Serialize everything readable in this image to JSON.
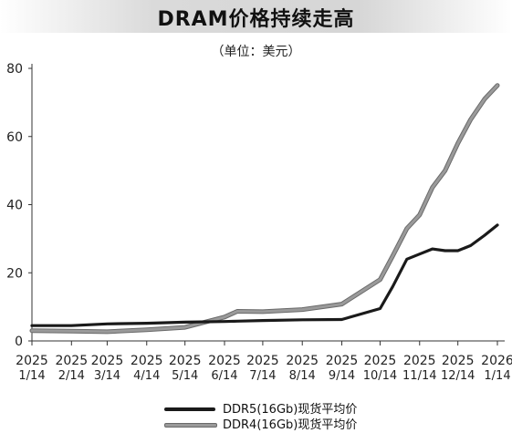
{
  "title": "DRAM价格持续走高",
  "unit": "（单位：美元）",
  "chart_data": {
    "type": "line",
    "x": [
      "2025-01-14",
      "2025-02-14",
      "2025-03-14",
      "2025-04-14",
      "2025-05-14",
      "2025-06-14",
      "2025-06-24",
      "2025-07-14",
      "2025-08-14",
      "2025-09-14",
      "2025-10-14",
      "2025-10-24",
      "2025-11-04",
      "2025-11-14",
      "2025-11-24",
      "2025-12-04",
      "2025-12-14",
      "2025-12-24",
      "2026-01-04",
      "2026-01-14"
    ],
    "xticks": [
      {
        "year": "2025",
        "md": "1/14"
      },
      {
        "year": "2025",
        "md": "2/14"
      },
      {
        "year": "2025",
        "md": "3/14"
      },
      {
        "year": "2025",
        "md": "4/14"
      },
      {
        "year": "2025",
        "md": "5/14"
      },
      {
        "year": "2025",
        "md": "6/14"
      },
      {
        "year": "2025",
        "md": "7/14"
      },
      {
        "year": "2025",
        "md": "8/14"
      },
      {
        "year": "2025",
        "md": "9/14"
      },
      {
        "year": "2025",
        "md": "10/14"
      },
      {
        "year": "2025",
        "md": "11/14"
      },
      {
        "year": "2025",
        "md": "12/14"
      },
      {
        "year": "2026",
        "md": "1/14"
      }
    ],
    "yticks": [
      "0",
      "20",
      "40",
      "60",
      "80"
    ],
    "ylim": [
      0,
      80
    ],
    "xlim": [
      "2025-01-14",
      "2026-01-14"
    ],
    "grid": false,
    "legend_position": "bottom",
    "series": [
      {
        "name": "DDR5(16Gb)现货平均价",
        "color": "#1a1a1a",
        "values": [
          4.5,
          4.5,
          5,
          5.2,
          5.5,
          5.7,
          5.8,
          6.0,
          6.2,
          6.3,
          9.5,
          16,
          24,
          25.5,
          27,
          26.5,
          26.5,
          28,
          31,
          34
        ]
      },
      {
        "name": "DDR4(16Gb)现货平均价",
        "color": "#9a9a9a",
        "values": [
          3,
          2.9,
          2.7,
          3.3,
          4,
          7,
          8.7,
          8.6,
          9.2,
          10.8,
          18,
          25,
          33,
          37,
          45,
          50,
          58,
          65,
          71,
          75
        ]
      }
    ]
  }
}
